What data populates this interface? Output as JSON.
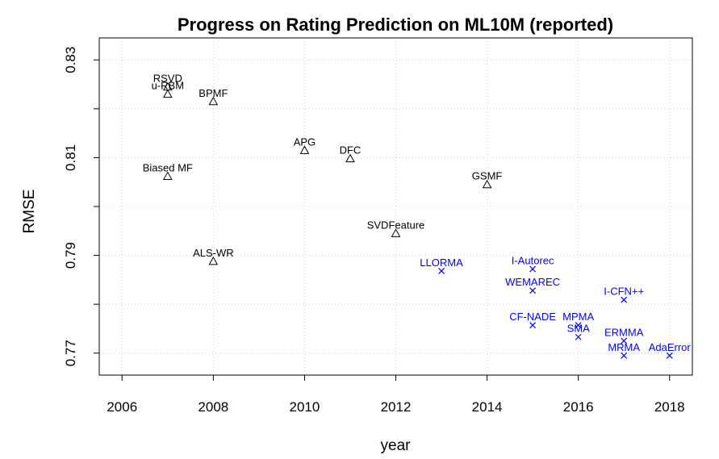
{
  "chart_data": {
    "type": "scatter",
    "title": "Progress on Rating Prediction on ML10M (reported)",
    "xlabel": "year",
    "ylabel": "RMSE",
    "xlim": [
      2005.5,
      2018.5
    ],
    "ylim": [
      0.7655,
      0.8345
    ],
    "x_ticks": [
      2006,
      2008,
      2010,
      2012,
      2014,
      2016,
      2018
    ],
    "y_ticks": [
      0.77,
      0.78,
      0.79,
      0.8,
      0.81,
      0.82,
      0.83
    ],
    "y_tick_labels": [
      "0.77",
      "",
      "0.79",
      "",
      "0.81",
      "",
      "0.83"
    ],
    "grid": true,
    "series": [
      {
        "marker": "triangle",
        "color": "#000000",
        "points": [
          {
            "label": "RSVD",
            "x": 2007,
            "y": 0.8245
          },
          {
            "label": "u-RBM",
            "x": 2007,
            "y": 0.823
          },
          {
            "label": "BPMF",
            "x": 2008,
            "y": 0.8215
          },
          {
            "label": "APG",
            "x": 2010,
            "y": 0.8115
          },
          {
            "label": "DFC",
            "x": 2011,
            "y": 0.8098
          },
          {
            "label": "Biased MF",
            "x": 2007,
            "y": 0.8062
          },
          {
            "label": "GSMF",
            "x": 2014,
            "y": 0.8045
          },
          {
            "label": "SVDFeature",
            "x": 2012,
            "y": 0.7945
          },
          {
            "label": "ALS-WR",
            "x": 2008,
            "y": 0.7888
          }
        ]
      },
      {
        "marker": "cross",
        "color": "#0000FF",
        "points": [
          {
            "label": "LLORMA",
            "x": 2013,
            "y": 0.7868
          },
          {
            "label": "I-Autorec",
            "x": 2015,
            "y": 0.7872
          },
          {
            "label": "WEMAREC",
            "x": 2015,
            "y": 0.7828
          },
          {
            "label": "I-CFN++",
            "x": 2017,
            "y": 0.7809
          },
          {
            "label": "CF-NADE",
            "x": 2015,
            "y": 0.7757
          },
          {
            "label": "MPMA",
            "x": 2016,
            "y": 0.7757
          },
          {
            "label": "SMA",
            "x": 2016,
            "y": 0.7733
          },
          {
            "label": "ERMMA",
            "x": 2017,
            "y": 0.7725
          },
          {
            "label": "MRMA",
            "x": 2017,
            "y": 0.7695
          },
          {
            "label": "AdaError",
            "x": 2018,
            "y": 0.7695
          }
        ]
      }
    ]
  }
}
